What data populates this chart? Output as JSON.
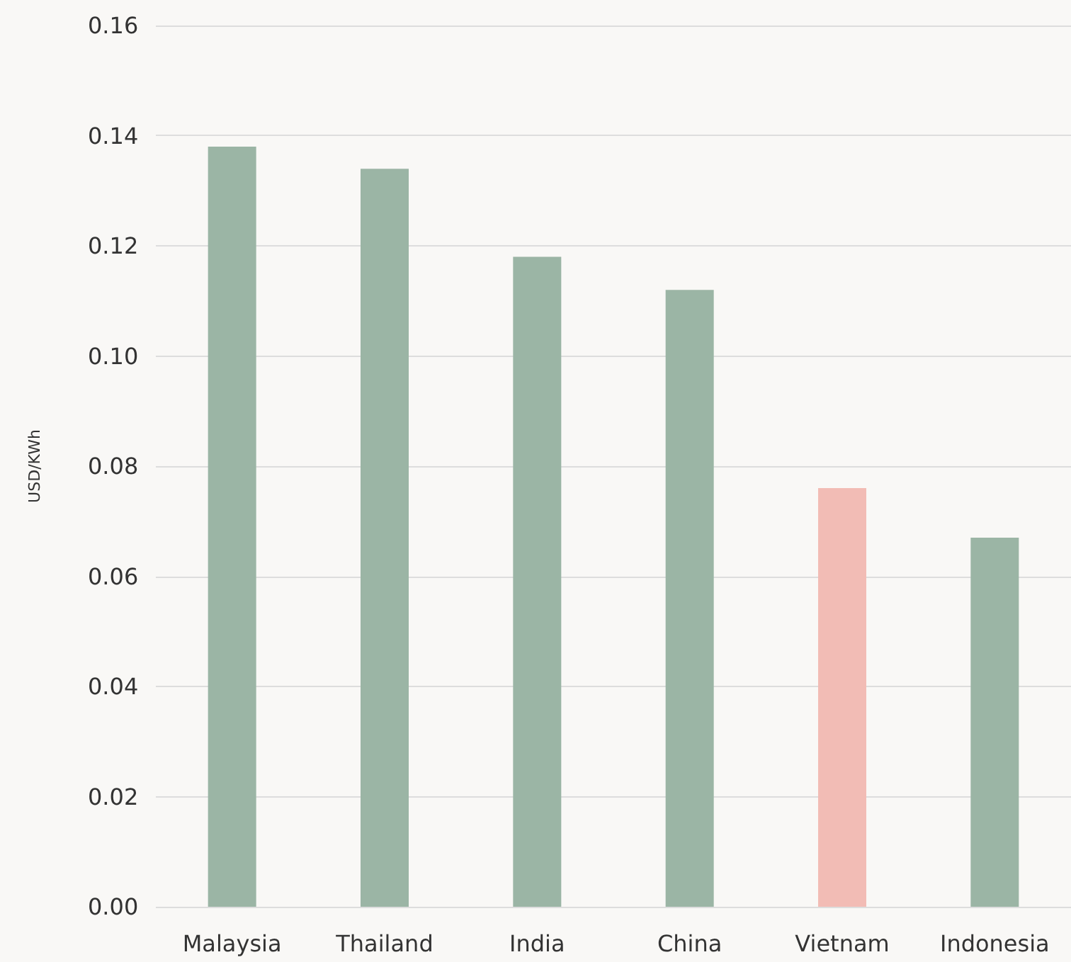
{
  "chart_data": {
    "type": "bar",
    "ylabel": "USD/KWh",
    "categories": [
      "Malaysia",
      "Thailand",
      "India",
      "China",
      "Vietnam",
      "Indonesia"
    ],
    "values": [
      0.138,
      0.134,
      0.118,
      0.112,
      0.076,
      0.067
    ],
    "colors": [
      "#9bb5a5",
      "#9bb5a5",
      "#9bb5a5",
      "#9bb5a5",
      "#f2bcb5",
      "#9bb5a5"
    ],
    "ylim": [
      0,
      0.16
    ],
    "yticks": [
      {
        "value": 0,
        "label": "0.00"
      },
      {
        "value": 0.02,
        "label": "0.02"
      },
      {
        "value": 0.04,
        "label": "0.04"
      },
      {
        "value": 0.06,
        "label": "0.06"
      },
      {
        "value": 0.08,
        "label": "0.08"
      },
      {
        "value": 0.1,
        "label": "0.10"
      },
      {
        "value": 0.12,
        "label": "0.12"
      },
      {
        "value": 0.14,
        "label": "0.14"
      },
      {
        "value": 0.16,
        "label": "0.16"
      }
    ],
    "grid": "y"
  }
}
